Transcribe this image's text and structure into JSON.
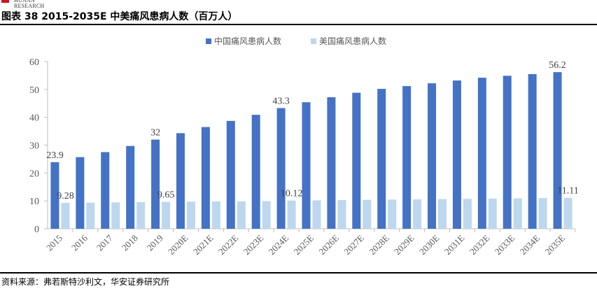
{
  "header": {
    "brand_text": "HUAAN RESEARCH",
    "figure_title": "图表  38 2015-2035E 中美痛风患病人数（百万人）"
  },
  "footer": {
    "source": "资料来源：弗若斯特沙利文，华安证券研究所"
  },
  "colors": {
    "china": "#4472c4",
    "usa": "#bdd7ee",
    "axis": "#bfbfbf",
    "text": "#595959",
    "brand": "#c8161d"
  },
  "chart_data": {
    "type": "bar",
    "title": "",
    "xlabel": "",
    "ylabel": "",
    "ylim": [
      0,
      60
    ],
    "yticks": [
      0,
      10,
      20,
      30,
      40,
      50,
      60
    ],
    "legend_position": "top-center",
    "categories": [
      "2015",
      "2016",
      "2017",
      "2018",
      "2019",
      "2020E",
      "2021E",
      "2022E",
      "2023E",
      "2024E",
      "2025E",
      "2026E",
      "2027E",
      "2028E",
      "2029E",
      "2030E",
      "2031E",
      "2032E",
      "2033E",
      "2034E",
      "2035E"
    ],
    "series": [
      {
        "name": "中国痛风患病人数",
        "color": "#4472c4",
        "values": [
          23.9,
          25.7,
          27.5,
          29.7,
          32.0,
          34.3,
          36.5,
          38.7,
          40.9,
          43.3,
          45.4,
          47.2,
          48.8,
          50.2,
          51.2,
          52.2,
          53.2,
          54.2,
          54.9,
          55.5,
          56.2
        ],
        "labels": {
          "0": "23.9",
          "4": "32",
          "9": "43.3",
          "20": "56.2"
        }
      },
      {
        "name": "美国痛风患病人数",
        "color": "#bdd7ee",
        "values": [
          9.28,
          9.37,
          9.46,
          9.55,
          9.65,
          9.72,
          9.79,
          9.86,
          9.92,
          10.12,
          10.2,
          10.29,
          10.38,
          10.47,
          10.56,
          10.65,
          10.74,
          10.83,
          10.92,
          11.01,
          11.11
        ],
        "labels": {
          "0": "9.28",
          "4": "9.65",
          "9": "10.12",
          "20": "11.11"
        }
      }
    ]
  }
}
